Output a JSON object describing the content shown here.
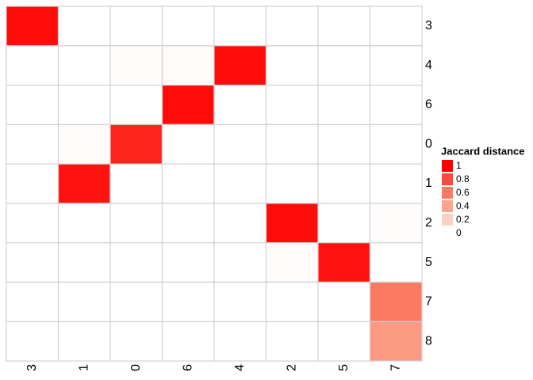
{
  "chart_data": {
    "type": "heatmap",
    "columns": [
      "3",
      "1",
      "0",
      "6",
      "4",
      "2",
      "5",
      "7"
    ],
    "rows": [
      "3",
      "4",
      "6",
      "0",
      "1",
      "2",
      "5",
      "7",
      "8"
    ],
    "values": [
      [
        0.97,
        0,
        0,
        0,
        0,
        0,
        0,
        0
      ],
      [
        0,
        0,
        0.01,
        0.02,
        0.97,
        0,
        0,
        0
      ],
      [
        0,
        0,
        0,
        0.97,
        0,
        0,
        0,
        0
      ],
      [
        0,
        0.02,
        0.9,
        0,
        0,
        0,
        0,
        0
      ],
      [
        0,
        0.95,
        0,
        0,
        0,
        0,
        0,
        0
      ],
      [
        0,
        0,
        0,
        0,
        0,
        0.97,
        0,
        0.01
      ],
      [
        0,
        0,
        0,
        0,
        0,
        0.02,
        0.95,
        0
      ],
      [
        0,
        0,
        0,
        0,
        0,
        0,
        0,
        0.6
      ],
      [
        0,
        0,
        0,
        0,
        0,
        0,
        0,
        0.45
      ]
    ],
    "legend_title": "Jaccard distance",
    "legend_ticks": [
      1,
      0.8,
      0.6,
      0.4,
      0.2,
      0
    ],
    "legend_colors": [
      "#ff0000",
      "#fc4a3a",
      "#fc7a62",
      "#fca58c",
      "#fdd2c3",
      "#ffffff"
    ],
    "grid_color": "#d3d3d3"
  }
}
